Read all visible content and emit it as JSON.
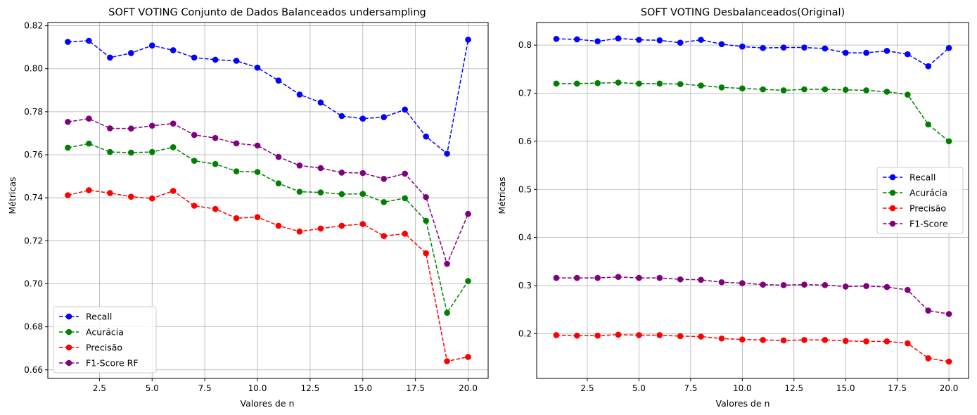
{
  "chart_data": [
    {
      "type": "line",
      "title": "SOFT VOTING Conjunto de Dados Balanceados undersampling",
      "xlabel": "Valores de n",
      "ylabel": "Métricas",
      "xlim": [
        0.05,
        20.95
      ],
      "ylim": [
        0.656,
        0.8215
      ],
      "xticks": [
        2.5,
        5.0,
        7.5,
        10.0,
        12.5,
        15.0,
        17.5,
        20.0
      ],
      "xtick_labels": [
        "2.5",
        "5.0",
        "7.5",
        "10.0",
        "12.5",
        "15.0",
        "17.5",
        "20.0"
      ],
      "yticks": [
        0.66,
        0.68,
        0.7,
        0.72,
        0.74,
        0.76,
        0.78,
        0.8,
        0.82
      ],
      "ytick_labels": [
        "0.66",
        "0.68",
        "0.70",
        "0.72",
        "0.74",
        "0.76",
        "0.78",
        "0.80",
        "0.82"
      ],
      "grid": true,
      "legend_position": "lower-left",
      "x": [
        1,
        2,
        3,
        4,
        5,
        6,
        7,
        8,
        9,
        10,
        11,
        12,
        13,
        14,
        15,
        16,
        17,
        18,
        19,
        20
      ],
      "series": [
        {
          "name": "Recall",
          "color": "#0000ff",
          "values": [
            0.8125,
            0.813,
            0.8052,
            0.8073,
            0.8108,
            0.8086,
            0.8052,
            0.8042,
            0.8037,
            0.8005,
            0.7945,
            0.788,
            0.7843,
            0.778,
            0.7768,
            0.7775,
            0.781,
            0.7685,
            0.7605,
            0.8135
          ]
        },
        {
          "name": "Acurácia",
          "color": "#008000",
          "values": [
            0.7633,
            0.7652,
            0.7613,
            0.761,
            0.7613,
            0.7635,
            0.7572,
            0.7557,
            0.7523,
            0.752,
            0.7467,
            0.7428,
            0.7425,
            0.7417,
            0.7418,
            0.738,
            0.7398,
            0.7293,
            0.6865,
            0.7013
          ]
        },
        {
          "name": "Precisão",
          "color": "#ff0000",
          "values": [
            0.7412,
            0.7435,
            0.7422,
            0.7405,
            0.7397,
            0.7432,
            0.7363,
            0.7348,
            0.7305,
            0.731,
            0.727,
            0.7243,
            0.7257,
            0.727,
            0.7278,
            0.7222,
            0.7233,
            0.7142,
            0.664,
            0.666
          ]
        },
        {
          "name": "F1-Score RF",
          "color": "#800080",
          "values": [
            0.7753,
            0.7768,
            0.7723,
            0.7722,
            0.7735,
            0.7745,
            0.7692,
            0.7678,
            0.7653,
            0.7643,
            0.759,
            0.755,
            0.7538,
            0.7517,
            0.7515,
            0.7488,
            0.7512,
            0.7403,
            0.7093,
            0.7325
          ]
        }
      ]
    },
    {
      "type": "line",
      "title": "SOFT VOTING Desbalanceados(Original)",
      "xlabel": "Valores de n",
      "ylabel": "Métricas",
      "xlim": [
        0.05,
        20.95
      ],
      "ylim": [
        0.107,
        0.847
      ],
      "xticks": [
        2.5,
        5.0,
        7.5,
        10.0,
        12.5,
        15.0,
        17.5,
        20.0
      ],
      "xtick_labels": [
        "2.5",
        "5.0",
        "7.5",
        "10.0",
        "12.5",
        "15.0",
        "17.5",
        "20.0"
      ],
      "yticks": [
        0.2,
        0.3,
        0.4,
        0.5,
        0.6,
        0.7,
        0.8
      ],
      "ytick_labels": [
        "0.2",
        "0.3",
        "0.4",
        "0.5",
        "0.6",
        "0.7",
        "0.8"
      ],
      "grid": true,
      "legend_position": "center-right",
      "x": [
        1,
        2,
        3,
        4,
        5,
        6,
        7,
        8,
        9,
        10,
        11,
        12,
        13,
        14,
        15,
        16,
        17,
        18,
        19,
        20
      ],
      "series": [
        {
          "name": "Recall",
          "color": "#0000ff",
          "values": [
            0.813,
            0.812,
            0.808,
            0.814,
            0.811,
            0.81,
            0.805,
            0.811,
            0.802,
            0.797,
            0.794,
            0.795,
            0.795,
            0.793,
            0.784,
            0.784,
            0.788,
            0.781,
            0.756,
            0.794
          ]
        },
        {
          "name": "Acurácia",
          "color": "#008000",
          "values": [
            0.72,
            0.72,
            0.721,
            0.722,
            0.72,
            0.72,
            0.719,
            0.716,
            0.712,
            0.71,
            0.708,
            0.706,
            0.708,
            0.708,
            0.707,
            0.706,
            0.703,
            0.697,
            0.635,
            0.6
          ]
        },
        {
          "name": "Precisão",
          "color": "#ff0000",
          "values": [
            0.197,
            0.196,
            0.196,
            0.198,
            0.197,
            0.197,
            0.195,
            0.194,
            0.19,
            0.188,
            0.187,
            0.186,
            0.187,
            0.187,
            0.185,
            0.184,
            0.184,
            0.18,
            0.149,
            0.142
          ]
        },
        {
          "name": "F1-Score",
          "color": "#800080",
          "values": [
            0.316,
            0.316,
            0.316,
            0.318,
            0.316,
            0.316,
            0.313,
            0.312,
            0.307,
            0.305,
            0.302,
            0.301,
            0.302,
            0.301,
            0.298,
            0.299,
            0.297,
            0.291,
            0.248,
            0.241
          ]
        }
      ]
    }
  ]
}
